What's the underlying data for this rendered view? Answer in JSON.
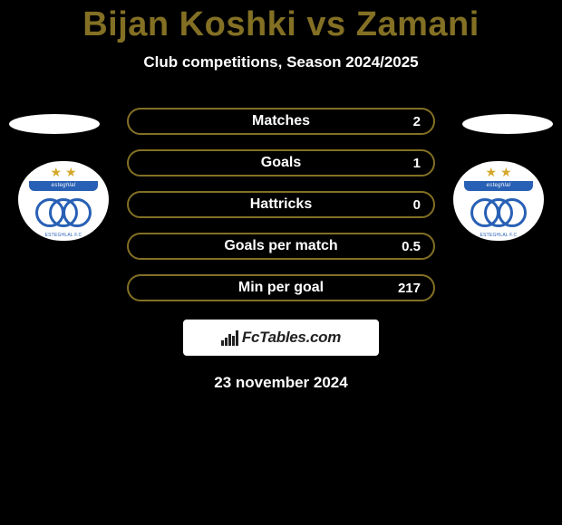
{
  "header": {
    "title_left": "Bijan Koshki",
    "title_vs": " vs ",
    "title_right": "Zamani",
    "title_color_left": "#837024",
    "title_color_right": "#837024",
    "subtitle": "Club competitions, Season 2024/2025"
  },
  "stats": {
    "row_border_color": "#837024",
    "rows": [
      {
        "label": "Matches",
        "value": "2"
      },
      {
        "label": "Goals",
        "value": "1"
      },
      {
        "label": "Hattricks",
        "value": "0"
      },
      {
        "label": "Goals per match",
        "value": "0.5"
      },
      {
        "label": "Min per goal",
        "value": "217"
      }
    ]
  },
  "footer": {
    "brand": "FcTables.com",
    "date": "23 november 2024"
  },
  "badges": {
    "ribbon_text": "esteghlal",
    "ring_color": "#2860b5",
    "star_color": "#d4a82a",
    "small_text": "ESTEGHLAL F.C"
  },
  "colors": {
    "background": "#000000",
    "text": "#ffffff"
  }
}
